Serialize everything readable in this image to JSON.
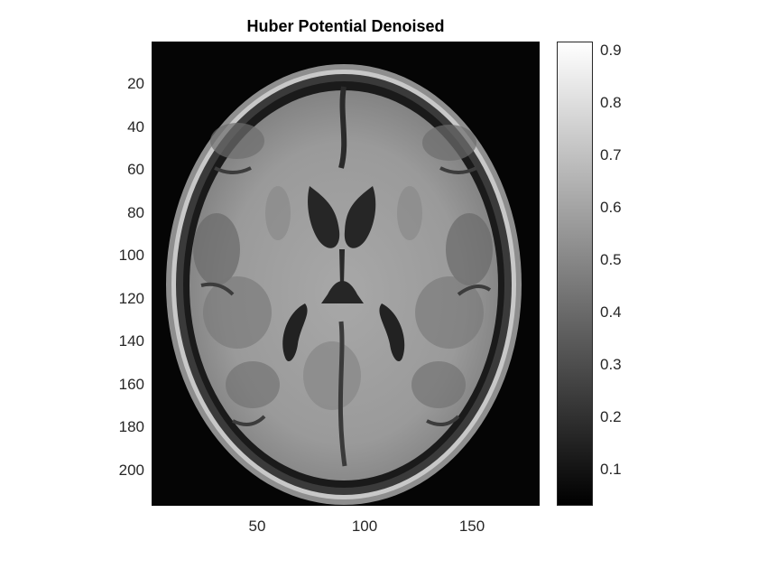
{
  "figure": {
    "title": "Huber Potential Denoised",
    "colormap": "gray",
    "background": "#050505",
    "x_axis": {
      "range": [
        1,
        181
      ],
      "ticks": [
        50,
        100,
        150
      ]
    },
    "y_axis": {
      "range": [
        1,
        217
      ],
      "ticks": [
        20,
        40,
        60,
        80,
        100,
        120,
        140,
        160,
        180,
        200
      ]
    },
    "colorbar": {
      "range": [
        0.03,
        0.92
      ],
      "ticks": [
        0.1,
        0.2,
        0.3,
        0.4,
        0.5,
        0.6,
        0.7,
        0.8,
        0.9
      ]
    },
    "image_content": "Axial brain MRI slice, grayscale",
    "x_tick_labels": [
      "50",
      "100",
      "150"
    ],
    "y_tick_labels": [
      "20",
      "40",
      "60",
      "80",
      "100",
      "120",
      "140",
      "160",
      "180",
      "200"
    ],
    "colorbar_tick_labels": [
      "0.1",
      "0.2",
      "0.3",
      "0.4",
      "0.5",
      "0.6",
      "0.7",
      "0.8",
      "0.9"
    ]
  }
}
